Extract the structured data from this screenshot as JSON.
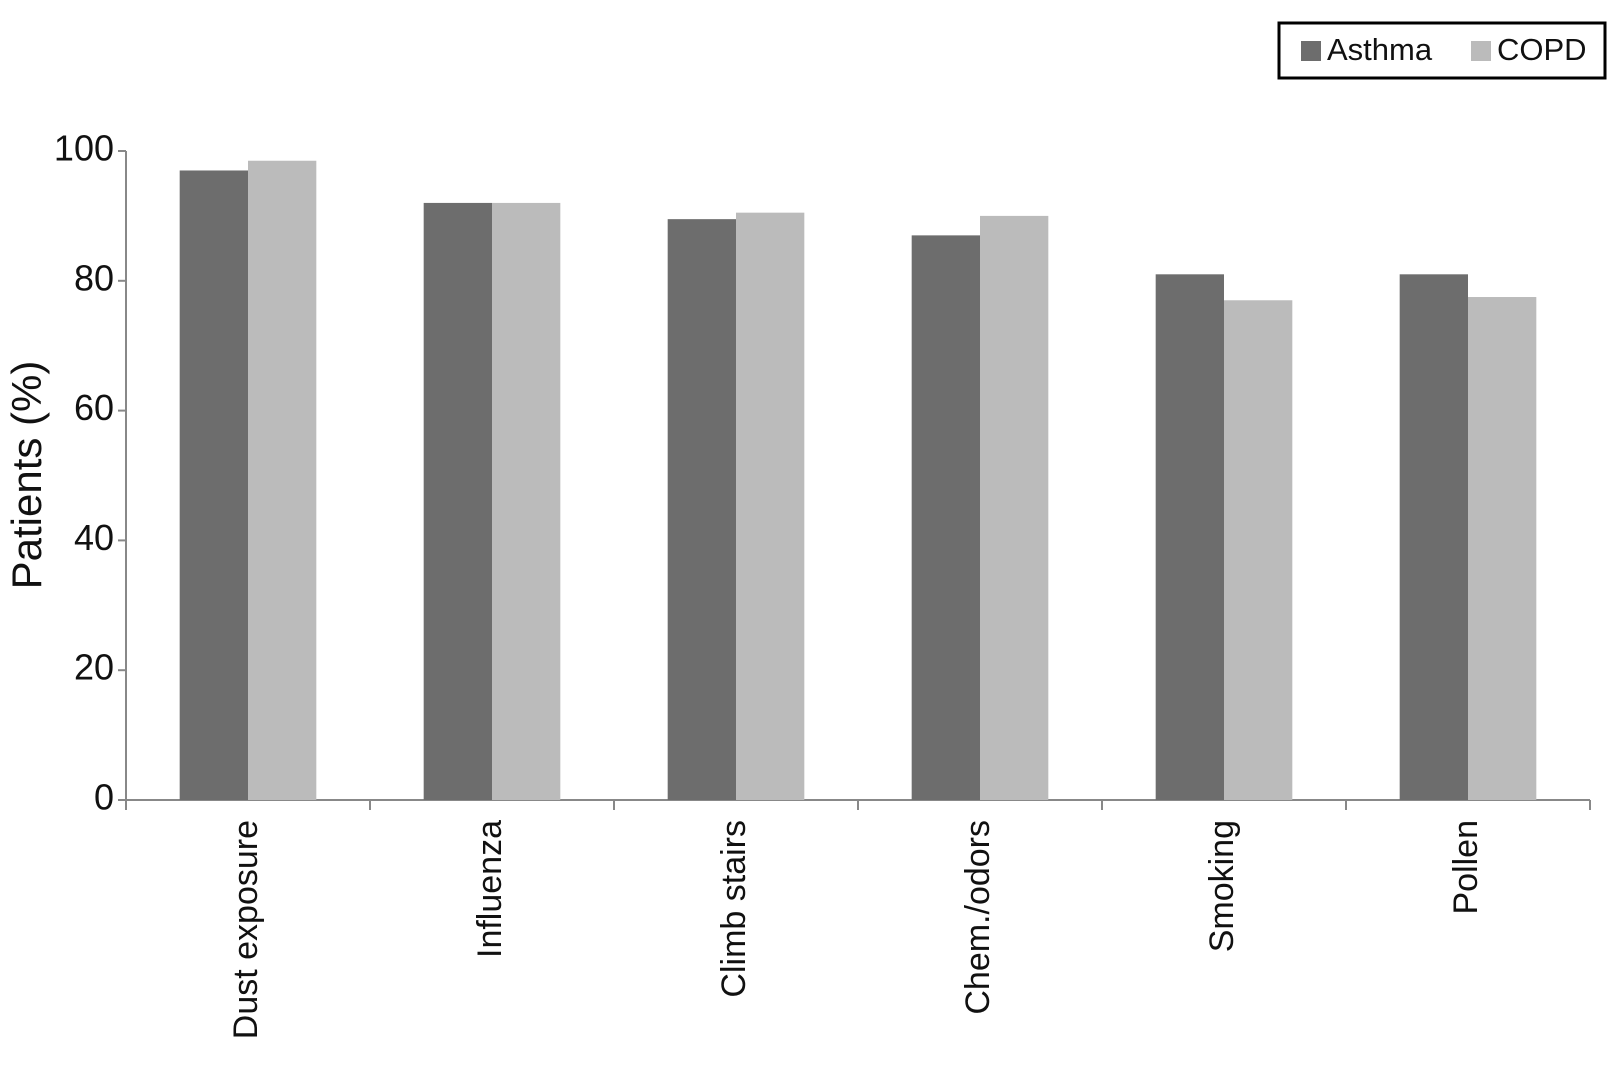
{
  "chart_data": {
    "type": "bar",
    "y_label": "Patients (%)",
    "categories": [
      "Dust exposure",
      "Influenza",
      "Climb stairs",
      "Chem./odors",
      "Smoking",
      "Pollen"
    ],
    "series": [
      {
        "name": "Asthma",
        "color": "#6d6d6d",
        "values": [
          97,
          92,
          89.5,
          87,
          81,
          81
        ]
      },
      {
        "name": "COPD",
        "color": "#bbbbbb",
        "values": [
          98.5,
          92,
          90.5,
          90,
          77,
          77.5
        ]
      }
    ],
    "ylim": [
      0,
      100
    ],
    "yticks": [
      0,
      20,
      40,
      60,
      80,
      100
    ],
    "grid": false,
    "legend": "top-right"
  }
}
